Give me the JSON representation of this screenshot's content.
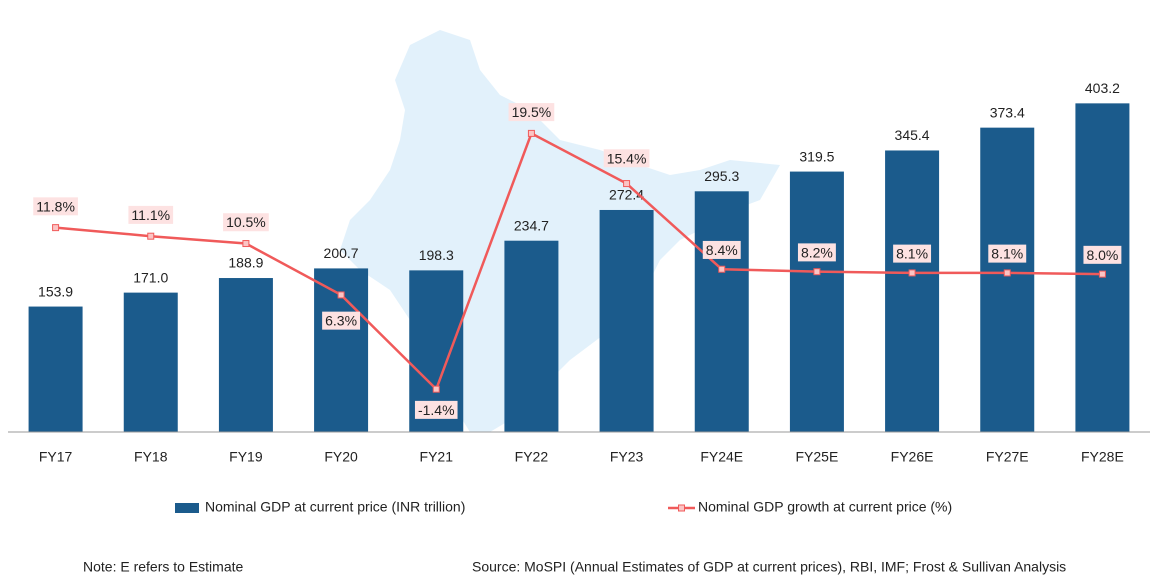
{
  "chart_data": {
    "type": "bar",
    "categories": [
      "FY17",
      "FY18",
      "FY19",
      "FY20",
      "FY21",
      "FY22",
      "FY23",
      "FY24E",
      "FY25E",
      "FY26E",
      "FY27E",
      "FY28E"
    ],
    "series": [
      {
        "name": "Nominal GDP at current price (INR trillion)",
        "type": "bar",
        "color": "#1b5b8c",
        "values": [
          153.9,
          171.0,
          188.9,
          200.7,
          198.3,
          234.7,
          272.4,
          295.3,
          319.5,
          345.4,
          373.4,
          403.2
        ],
        "value_labels": [
          "153.9",
          "171.0",
          "188.9",
          "200.7",
          "198.3",
          "234.7",
          "272.4",
          "295.3",
          "319.5",
          "345.4",
          "373.4",
          "403.2"
        ]
      },
      {
        "name": "Nominal GDP growth at current price (%)",
        "type": "line",
        "color": "#f05a5a",
        "axis": "y2",
        "values": [
          11.8,
          11.1,
          10.5,
          6.3,
          -1.4,
          19.5,
          15.4,
          8.4,
          8.2,
          8.1,
          8.1,
          8.0
        ],
        "value_labels": [
          "11.8%",
          "11.1%",
          "10.5%",
          "6.3%",
          "-1.4%",
          "19.5%",
          "15.4%",
          "8.4%",
          "8.2%",
          "8.1%",
          "8.1%",
          "8.0%"
        ]
      }
    ],
    "ylim": [
      0,
      530
    ],
    "y2lim": [
      -4.9,
      30.4
    ],
    "note": "Note: E refers to Estimate",
    "source": "Source: MoSPI (Annual Estimates of GDP at current prices), RBI, IMF; Frost & Sullivan Analysis"
  }
}
